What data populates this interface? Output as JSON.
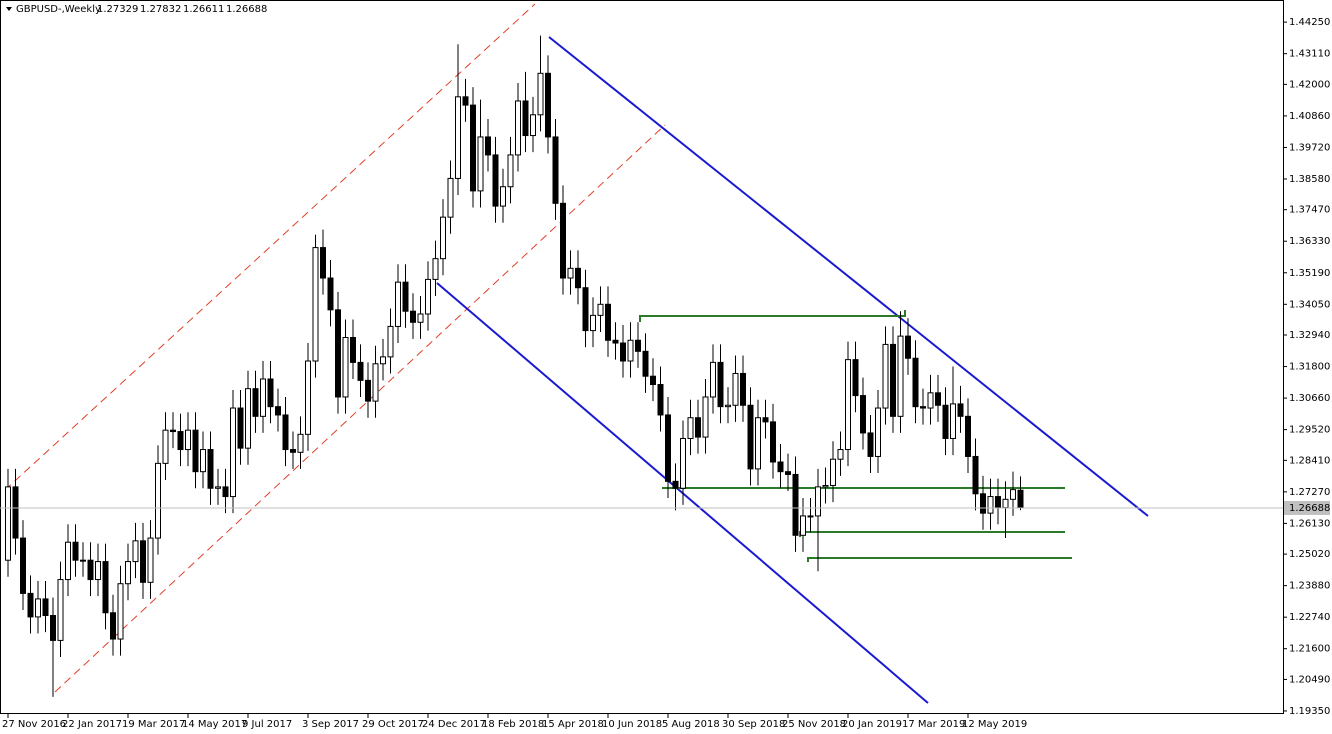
{
  "chart_data": {
    "type": "candlestick",
    "title": "GBPUSD-,Weekly",
    "categories": [
      "27 Nov 2016",
      null,
      null,
      null,
      null,
      null,
      null,
      null,
      "22 Jan 2017",
      null,
      null,
      null,
      null,
      null,
      null,
      null,
      "19 Mar 2017",
      null,
      null,
      null,
      null,
      null,
      null,
      null,
      "14 May 2017",
      null,
      null,
      null,
      null,
      null,
      null,
      null,
      "9 Jul 2017",
      null,
      null,
      null,
      null,
      null,
      null,
      null,
      "3 Sep 2017",
      null,
      null,
      null,
      null,
      null,
      null,
      null,
      "29 Oct 2017",
      null,
      null,
      null,
      null,
      null,
      null,
      null,
      "24 Dec 2017",
      null,
      null,
      null,
      null,
      null,
      null,
      null,
      "18 Feb 2018",
      null,
      null,
      null,
      null,
      null,
      null,
      null,
      "15 Apr 2018",
      null,
      null,
      null,
      null,
      null,
      null,
      null,
      "10 Jun 2018",
      null,
      null,
      null,
      null,
      null,
      null,
      null,
      "5 Aug 2018",
      null,
      null,
      null,
      null,
      null,
      null,
      null,
      "30 Sep 2018",
      null,
      null,
      null,
      null,
      null,
      null,
      null,
      "25 Nov 2018",
      null,
      null,
      null,
      null,
      null,
      null,
      null,
      "20 Jan 2019",
      null,
      null,
      null,
      null,
      null,
      null,
      null,
      "17 Mar 2019",
      null,
      null,
      null,
      null,
      null,
      null,
      null,
      "12 May 2019",
      null,
      null,
      null,
      null,
      null,
      null,
      null
    ],
    "open": [
      1.248,
      1.2745,
      1.256,
      1.236,
      1.2275,
      1.234,
      1.228,
      1.219,
      1.241,
      1.2545,
      1.248,
      1.248,
      1.241,
      1.2475,
      1.229,
      1.2195,
      1.2395,
      1.2475,
      1.255,
      1.24,
      1.256,
      1.283,
      1.295,
      1.2945,
      1.288,
      1.295,
      1.28,
      1.288,
      1.274,
      1.2745,
      1.271,
      1.303,
      1.2885,
      1.31,
      1.3,
      1.3135,
      1.3035,
      1.3005,
      1.288,
      1.287,
      1.2935,
      1.32,
      1.361,
      1.35,
      1.3385,
      1.307,
      1.3285,
      1.3195,
      1.313,
      1.3055,
      1.319,
      1.3215,
      1.3325,
      1.3485,
      1.338,
      1.334,
      1.337,
      1.3495,
      1.357,
      1.372,
      1.386,
      1.4155,
      1.4125,
      1.3815,
      1.401,
      1.3945,
      1.376,
      1.383,
      1.3945,
      1.414,
      1.4015,
      1.409,
      1.424,
      1.401,
      1.377,
      1.35,
      1.3535,
      1.3465,
      1.331,
      1.3365,
      1.3405,
      1.3275,
      1.3265,
      1.32,
      1.3275,
      1.3235,
      1.3145,
      1.3115,
      1.3005,
      1.2765,
      1.274,
      1.292,
      1.2995,
      1.2925,
      1.307,
      1.3195,
      1.3035,
      1.304,
      1.3155,
      1.304,
      1.281,
      1.2995,
      1.298,
      1.2835,
      1.28,
      1.279,
      1.257,
      1.264,
      1.264,
      1.2745,
      1.275,
      1.2845,
      1.288,
      1.3205,
      1.3075,
      1.294,
      1.2855,
      1.303,
      1.326,
      1.3,
      1.329,
      1.321,
      1.3035,
      1.303,
      1.3085,
      1.304,
      1.292,
      1.3045,
      1.3,
      1.2855,
      1.272,
      1.265,
      1.271,
      1.267,
      1.27,
      1.27329
    ],
    "high": [
      1.281,
      1.281,
      1.2625,
      1.2425,
      1.2405,
      1.2405,
      1.2345,
      1.2475,
      1.261,
      1.261,
      1.2545,
      1.2545,
      1.254,
      1.254,
      1.2355,
      1.246,
      1.254,
      1.2615,
      1.2615,
      1.2625,
      1.2895,
      1.3015,
      1.3015,
      1.301,
      1.3015,
      1.3015,
      1.2945,
      1.2945,
      1.281,
      1.281,
      1.3095,
      1.3095,
      1.3165,
      1.3165,
      1.32,
      1.32,
      1.31,
      1.307,
      1.2945,
      1.3,
      1.3265,
      1.3657,
      1.3675,
      1.3565,
      1.345,
      1.335,
      1.335,
      1.326,
      1.3195,
      1.3255,
      1.328,
      1.339,
      1.355,
      1.355,
      1.3445,
      1.3435,
      1.356,
      1.3635,
      1.3785,
      1.3925,
      1.4345,
      1.422,
      1.419,
      1.4145,
      1.4075,
      1.401,
      1.3895,
      1.401,
      1.4205,
      1.4245,
      1.4155,
      1.4376,
      1.4305,
      1.4075,
      1.3835,
      1.36,
      1.36,
      1.353,
      1.343,
      1.347,
      1.347,
      1.334,
      1.333,
      1.334,
      1.334,
      1.33,
      1.321,
      1.318,
      1.307,
      1.283,
      1.2985,
      1.306,
      1.306,
      1.3135,
      1.326,
      1.326,
      1.3105,
      1.322,
      1.322,
      1.3105,
      1.306,
      1.306,
      1.3045,
      1.29,
      1.2865,
      1.2855,
      1.2705,
      1.2705,
      1.281,
      1.2815,
      1.291,
      1.2945,
      1.327,
      1.327,
      1.314,
      1.3005,
      1.3095,
      1.3325,
      1.3325,
      1.338,
      1.3355,
      1.3275,
      1.31,
      1.315,
      1.315,
      1.3105,
      1.318,
      1.311,
      1.3065,
      1.292,
      1.2785,
      1.2775,
      1.2775,
      1.2765,
      1.28,
      1.27832
    ],
    "low": [
      1.242,
      1.25,
      1.23,
      1.2215,
      1.2215,
      1.222,
      1.1986,
      1.213,
      1.235,
      1.242,
      1.242,
      1.235,
      1.235,
      1.223,
      1.2135,
      1.2135,
      1.2335,
      1.2415,
      1.234,
      1.234,
      1.25,
      1.277,
      1.2885,
      1.282,
      1.282,
      1.274,
      1.274,
      1.268,
      1.268,
      1.265,
      1.265,
      1.2825,
      1.2825,
      1.294,
      1.294,
      1.2975,
      1.2945,
      1.282,
      1.281,
      1.281,
      1.2875,
      1.314,
      1.344,
      1.3325,
      1.301,
      1.301,
      1.3135,
      1.307,
      1.2995,
      1.2995,
      1.313,
      1.3155,
      1.3265,
      1.332,
      1.328,
      1.328,
      1.331,
      1.3435,
      1.351,
      1.366,
      1.38,
      1.4065,
      1.3755,
      1.3755,
      1.3885,
      1.37,
      1.37,
      1.377,
      1.3885,
      1.3955,
      1.3955,
      1.403,
      1.395,
      1.371,
      1.344,
      1.344,
      1.3405,
      1.325,
      1.325,
      1.3305,
      1.3215,
      1.3205,
      1.314,
      1.314,
      1.3175,
      1.3085,
      1.3055,
      1.2945,
      1.2705,
      1.266,
      1.268,
      1.286,
      1.2865,
      1.2865,
      1.301,
      1.2975,
      1.2975,
      1.298,
      1.298,
      1.275,
      1.275,
      1.292,
      1.2775,
      1.274,
      1.273,
      1.251,
      1.251,
      1.258,
      1.244,
      1.2685,
      1.269,
      1.2785,
      1.282,
      1.3015,
      1.288,
      1.2795,
      1.2795,
      1.297,
      1.294,
      1.294,
      1.315,
      1.2975,
      1.297,
      1.297,
      1.298,
      1.286,
      1.286,
      1.294,
      1.2795,
      1.266,
      1.259,
      1.259,
      1.261,
      1.256,
      1.264,
      1.26611
    ],
    "close": [
      1.2745,
      1.256,
      1.236,
      1.2275,
      1.234,
      1.228,
      1.219,
      1.241,
      1.2545,
      1.248,
      1.248,
      1.241,
      1.2475,
      1.229,
      1.2195,
      1.2395,
      1.2475,
      1.255,
      1.24,
      1.256,
      1.283,
      1.295,
      1.2945,
      1.288,
      1.295,
      1.28,
      1.288,
      1.274,
      1.2745,
      1.271,
      1.303,
      1.2885,
      1.31,
      1.3,
      1.3135,
      1.3035,
      1.3005,
      1.288,
      1.287,
      1.2935,
      1.32,
      1.361,
      1.35,
      1.3385,
      1.307,
      1.3285,
      1.3195,
      1.313,
      1.3055,
      1.319,
      1.3215,
      1.3325,
      1.3485,
      1.338,
      1.334,
      1.337,
      1.3495,
      1.357,
      1.372,
      1.386,
      1.4155,
      1.4125,
      1.3815,
      1.401,
      1.3945,
      1.376,
      1.383,
      1.3945,
      1.414,
      1.4015,
      1.409,
      1.424,
      1.401,
      1.377,
      1.35,
      1.3535,
      1.3465,
      1.331,
      1.3365,
      1.3405,
      1.3275,
      1.3265,
      1.32,
      1.3275,
      1.3235,
      1.3145,
      1.3115,
      1.3005,
      1.2765,
      1.274,
      1.292,
      1.2995,
      1.2925,
      1.307,
      1.3195,
      1.3035,
      1.304,
      1.3155,
      1.304,
      1.281,
      1.2995,
      1.298,
      1.2835,
      1.28,
      1.279,
      1.257,
      1.264,
      1.264,
      1.2745,
      1.275,
      1.2845,
      1.288,
      1.3205,
      1.3075,
      1.294,
      1.2855,
      1.303,
      1.326,
      1.3,
      1.329,
      1.321,
      1.3035,
      1.303,
      1.3085,
      1.304,
      1.292,
      1.3045,
      1.3,
      1.2855,
      1.272,
      1.265,
      1.271,
      1.267,
      1.27,
      1.2735,
      1.26688
    ],
    "ylim": [
      1.1924,
      1.4505
    ],
    "yticks": [
      {
        "value": 1.4425,
        "label": "1.44250"
      },
      {
        "value": 1.4311,
        "label": "1.43110"
      },
      {
        "value": 1.42,
        "label": "1.42000"
      },
      {
        "value": 1.4086,
        "label": "1.40860"
      },
      {
        "value": 1.3972,
        "label": "1.39720"
      },
      {
        "value": 1.3858,
        "label": "1.38580"
      },
      {
        "value": 1.3747,
        "label": "1.37470"
      },
      {
        "value": 1.3633,
        "label": "1.36330"
      },
      {
        "value": 1.3519,
        "label": "1.35190"
      },
      {
        "value": 1.3405,
        "label": "1.34050"
      },
      {
        "value": 1.3294,
        "label": "1.32940"
      },
      {
        "value": 1.318,
        "label": "1.31800"
      },
      {
        "value": 1.3066,
        "label": "1.30660"
      },
      {
        "value": 1.2952,
        "label": "1.29520"
      },
      {
        "value": 1.2841,
        "label": "1.28410"
      },
      {
        "value": 1.2727,
        "label": "1.27270"
      },
      {
        "value": 1.2613,
        "label": "1.26130"
      },
      {
        "value": 1.2502,
        "label": "1.25020"
      },
      {
        "value": 1.2388,
        "label": "1.23880"
      },
      {
        "value": 1.2274,
        "label": "1.22740"
      },
      {
        "value": 1.216,
        "label": "1.21600"
      },
      {
        "value": 1.2049,
        "label": "1.20490"
      },
      {
        "value": 1.1935,
        "label": "1.19350"
      }
    ],
    "bull_color": "#ffffff",
    "bear_color": "#000000"
  }
}
